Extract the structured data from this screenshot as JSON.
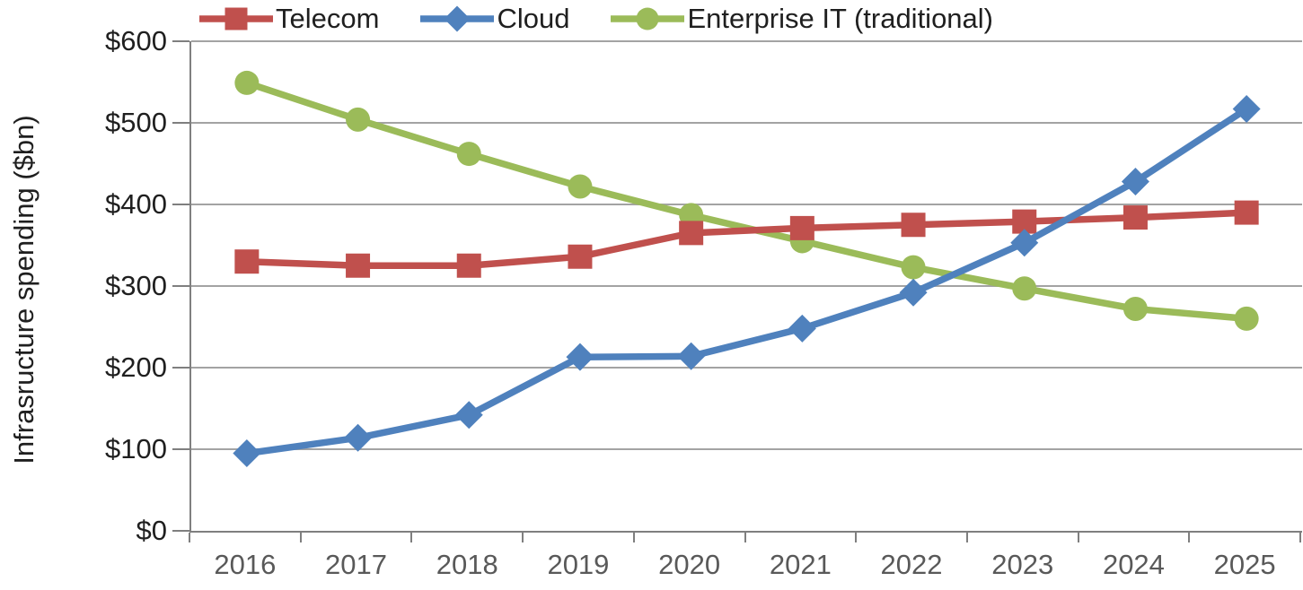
{
  "chart_data": {
    "type": "line",
    "x": [
      "2016",
      "2017",
      "2018",
      "2019",
      "2020",
      "2021",
      "2022",
      "2023",
      "2024",
      "2025"
    ],
    "series": [
      {
        "name": "Telecom",
        "color": "#C0504D",
        "marker": "square",
        "z": 2,
        "values": [
          330,
          325,
          325,
          336,
          365,
          371,
          375,
          379,
          384,
          390
        ]
      },
      {
        "name": "Cloud",
        "color": "#4F81BD",
        "marker": "diamond",
        "z": 3,
        "values": [
          95,
          114,
          142,
          213,
          214,
          248,
          292,
          353,
          428,
          517
        ]
      },
      {
        "name": "Enterprise IT (traditional)",
        "color": "#9BBB59",
        "marker": "circle",
        "z": 1,
        "values": [
          549,
          504,
          462,
          422,
          387,
          355,
          323,
          297,
          272,
          260
        ]
      }
    ],
    "title": "",
    "xlabel": "",
    "ylabel": "Infrasructure spending ($bn)",
    "ylim": [
      0,
      600
    ],
    "y_ticks": [
      {
        "v": 0,
        "label": "$0"
      },
      {
        "v": 100,
        "label": "$100"
      },
      {
        "v": 200,
        "label": "$200"
      },
      {
        "v": 300,
        "label": "$300"
      },
      {
        "v": 400,
        "label": "$400"
      },
      {
        "v": 500,
        "label": "$500"
      },
      {
        "v": 600,
        "label": "$600"
      }
    ],
    "grid": "horizontal",
    "legend_position": "top"
  }
}
